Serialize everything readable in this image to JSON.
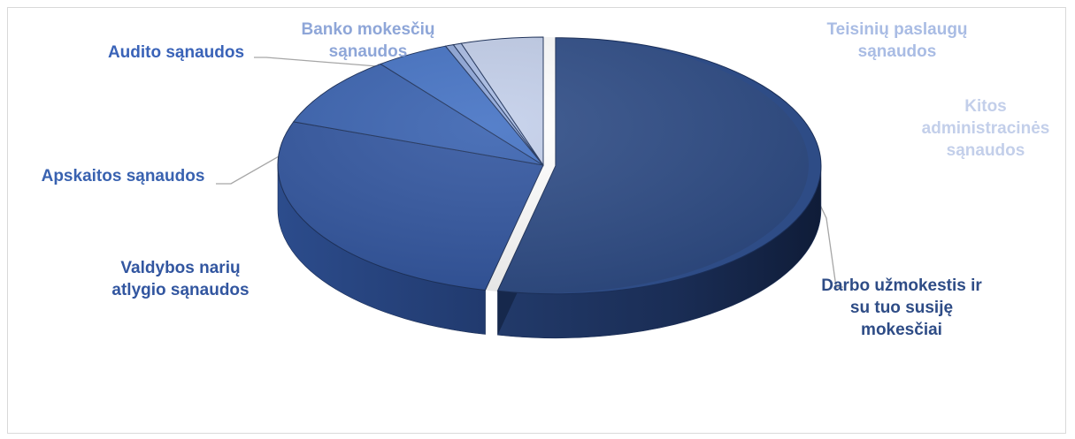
{
  "chart_data": {
    "type": "pie",
    "variant": "3d-exploded",
    "title": "",
    "legend": "none",
    "slices": [
      {
        "label_lines": [
          "Darbo užmokestis ir",
          "su tuo susiję",
          "mokesčiai"
        ],
        "value": 53.5,
        "color": "#2e4c86",
        "label_color": "#2e4c86"
      },
      {
        "label_lines": [
          "Valdybos narių",
          "atlygio sąnaudos"
        ],
        "value": 27,
        "color": "#3256a0",
        "label_color": "#3256a0"
      },
      {
        "label_lines": [
          "Apskaitos sąnaudos"
        ],
        "value": 9,
        "color": "#3962b0",
        "label_color": "#3962b0"
      },
      {
        "label_lines": [
          "Audito sąnaudos"
        ],
        "value": 4.5,
        "color": "#4472c4",
        "label_color": "#3a63b8"
      },
      {
        "label_lines": [
          "Banko mokesčių",
          "sąnaudos"
        ],
        "value": 0.5,
        "color": "#8ea6d8",
        "label_color": "#8ea6d8"
      },
      {
        "label_lines": [
          "Teisinių paslaugų",
          "sąnaudos"
        ],
        "value": 0.5,
        "color": "#a9bce4",
        "label_color": "#a9bce4"
      },
      {
        "label_lines": [
          "Kitos",
          "administracinės",
          "sąnaudos"
        ],
        "value": 5,
        "color": "#c3cfea",
        "label_color": "#c3cfea"
      }
    ]
  }
}
